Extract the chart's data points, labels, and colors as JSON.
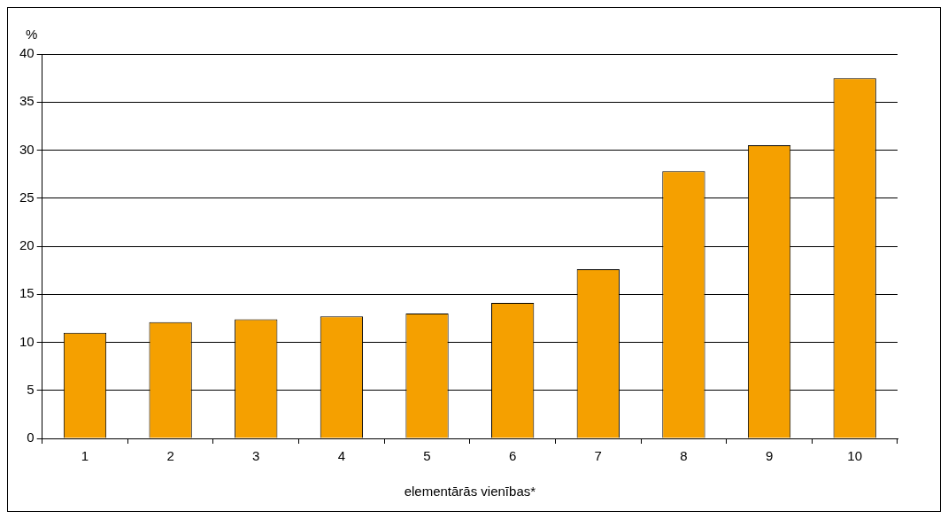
{
  "chart_data": {
    "type": "bar",
    "ylabel": "%",
    "xlabel": "elementārās vienības*",
    "categories": [
      "1",
      "2",
      "3",
      "4",
      "5",
      "6",
      "7",
      "8",
      "9",
      "10"
    ],
    "values": [
      11.0,
      12.1,
      12.4,
      12.7,
      13.0,
      14.1,
      17.6,
      27.8,
      30.5,
      37.5
    ],
    "color": "#f5a000",
    "ylim": [
      0,
      40
    ],
    "yticks": [
      0,
      5,
      10,
      15,
      20,
      25,
      30,
      35,
      40
    ],
    "grid": "y",
    "legend": false
  }
}
